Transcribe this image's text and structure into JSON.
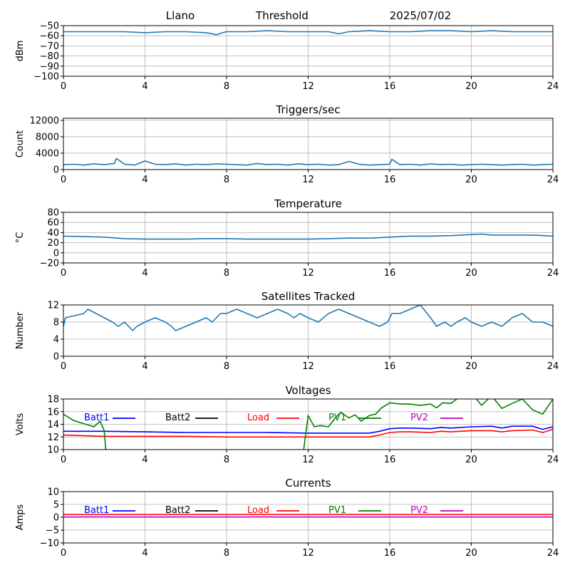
{
  "header": {
    "site": "Llano",
    "mode": "Threshold",
    "date": "2025/07/02"
  },
  "chart_data": [
    {
      "type": "line",
      "title": "",
      "ylabel": "dBm",
      "xlim": [
        0,
        24
      ],
      "ylim": [
        -100,
        -50
      ],
      "xticks": [
        0,
        4,
        8,
        12,
        16,
        20,
        24
      ],
      "yticks": [
        -100,
        -90,
        -80,
        -70,
        -60,
        -50
      ],
      "series": [
        {
          "color": "#1f77b4",
          "x": [
            0,
            1,
            2,
            3,
            4,
            5,
            6,
            7,
            7.3,
            7.5,
            7.8,
            8,
            9,
            10,
            11,
            12,
            13,
            13.5,
            14,
            15,
            16,
            17,
            18,
            19,
            20,
            21,
            22,
            23,
            24
          ],
          "y": [
            -56,
            -56,
            -56,
            -56,
            -57,
            -56,
            -56,
            -57,
            -58,
            -59,
            -57,
            -56,
            -56,
            -55,
            -56,
            -56,
            -56,
            -58,
            -56,
            -55,
            -56,
            -56,
            -55,
            -55,
            -56,
            -55,
            -56,
            -56,
            -56
          ]
        }
      ]
    },
    {
      "type": "line",
      "title": "Triggers/sec",
      "ylabel": "Count",
      "xlim": [
        0,
        24
      ],
      "ylim": [
        0,
        12500
      ],
      "xticks": [
        0,
        4,
        8,
        12,
        16,
        20,
        24
      ],
      "yticks": [
        0,
        4000,
        8000,
        12000
      ],
      "series": [
        {
          "color": "#1f77b4",
          "x": [
            0,
            0.5,
            1,
            1.5,
            2,
            2.5,
            2.6,
            3,
            3.5,
            4,
            4.5,
            5,
            5.5,
            6,
            6.5,
            7,
            7.5,
            8,
            8.5,
            9,
            9.5,
            10,
            10.5,
            11,
            11.5,
            12,
            12.5,
            13,
            13.5,
            14,
            14.5,
            15,
            15.5,
            16,
            16.1,
            16.5,
            17,
            17.5,
            18,
            18.5,
            19,
            19.5,
            20,
            20.5,
            21,
            21.5,
            22,
            22.5,
            23,
            23.5,
            24
          ],
          "y": [
            1200,
            1300,
            1100,
            1400,
            1200,
            1500,
            2700,
            1300,
            1100,
            2100,
            1300,
            1200,
            1400,
            1100,
            1300,
            1200,
            1400,
            1300,
            1200,
            1100,
            1500,
            1200,
            1300,
            1100,
            1400,
            1200,
            1300,
            1100,
            1200,
            2000,
            1300,
            1100,
            1200,
            1300,
            2500,
            1200,
            1300,
            1100,
            1400,
            1200,
            1300,
            1100,
            1200,
            1300,
            1200,
            1100,
            1200,
            1300,
            1100,
            1200,
            1300
          ]
        }
      ]
    },
    {
      "type": "line",
      "title": "Temperature",
      "ylabel": "°C",
      "xlim": [
        0,
        24
      ],
      "ylim": [
        -20,
        80
      ],
      "xticks": [
        0,
        4,
        8,
        12,
        16,
        20,
        24
      ],
      "yticks": [
        -20,
        0,
        20,
        40,
        60,
        80
      ],
      "series": [
        {
          "color": "#1f77b4",
          "x": [
            0,
            1,
            2,
            3,
            4,
            5,
            6,
            7,
            8,
            9,
            10,
            11,
            12,
            13,
            14,
            15,
            16,
            17,
            18,
            19,
            20,
            20.5,
            21,
            22,
            23,
            24
          ],
          "y": [
            33,
            32,
            31,
            28,
            27,
            27,
            27,
            28,
            28,
            27,
            27,
            27,
            27,
            28,
            29,
            29,
            31,
            33,
            33,
            34,
            36,
            37,
            35,
            35,
            35,
            33
          ]
        }
      ]
    },
    {
      "type": "line",
      "title": "Satellites Tracked",
      "ylabel": "Number",
      "xlim": [
        0,
        24
      ],
      "ylim": [
        0,
        12
      ],
      "xticks": [
        0,
        4,
        8,
        12,
        16,
        20,
        24
      ],
      "yticks": [
        0,
        4,
        8,
        12
      ],
      "series": [
        {
          "color": "#1f77b4",
          "x": [
            0,
            0.1,
            1,
            1.2,
            1.6,
            2,
            2.4,
            2.7,
            3,
            3.2,
            3.4,
            3.6,
            4,
            4.5,
            5,
            5.3,
            5.5,
            6,
            6.5,
            7,
            7.3,
            7.7,
            8,
            8.5,
            9,
            9.5,
            10,
            10.5,
            11,
            11.3,
            11.6,
            12,
            12.5,
            13,
            13.5,
            14,
            14.5,
            15,
            15.5,
            15.9,
            16.1,
            16.5,
            17,
            17.5,
            18,
            18.3,
            18.7,
            19,
            19.3,
            19.7,
            20,
            20.5,
            21,
            21.5,
            22,
            22.5,
            23,
            23.5,
            24
          ],
          "y": [
            7,
            9,
            10,
            11,
            10,
            9,
            8,
            7,
            8,
            7,
            6,
            7,
            8,
            9,
            8,
            7,
            6,
            7,
            8,
            9,
            8,
            10,
            10,
            11,
            10,
            9,
            10,
            11,
            10,
            9,
            10,
            9,
            8,
            10,
            11,
            10,
            9,
            8,
            7,
            8,
            10,
            10,
            11,
            12,
            9,
            7,
            8,
            7,
            8,
            9,
            8,
            7,
            8,
            7,
            9,
            10,
            8,
            8,
            7
          ]
        }
      ]
    },
    {
      "type": "line",
      "title": "Voltages",
      "ylabel": "Volts",
      "xlim": [
        0,
        24
      ],
      "ylim": [
        10,
        18
      ],
      "xticks": [
        0,
        4,
        8,
        12,
        16,
        20,
        24
      ],
      "yticks": [
        10,
        12,
        14,
        16,
        18
      ],
      "legend": [
        "Batt1",
        "Batt2",
        "Load",
        "PV1",
        "PV2"
      ],
      "series": [
        {
          "name": "Batt1",
          "color": "#0000ff",
          "x": [
            0,
            2,
            4,
            6,
            8,
            10,
            12,
            14,
            15,
            15.5,
            16,
            16.5,
            17,
            18,
            18.5,
            19,
            20,
            21,
            21.5,
            22,
            23,
            23.5,
            24
          ],
          "y": [
            12.9,
            12.9,
            12.8,
            12.7,
            12.7,
            12.7,
            12.6,
            12.6,
            12.6,
            12.9,
            13.3,
            13.4,
            13.4,
            13.3,
            13.5,
            13.4,
            13.6,
            13.7,
            13.4,
            13.7,
            13.7,
            13.2,
            13.6
          ]
        },
        {
          "name": "Load",
          "color": "#ff0000",
          "x": [
            0,
            2,
            4,
            6,
            8,
            10,
            12,
            14,
            15,
            15.5,
            16,
            16.5,
            17,
            18,
            18.5,
            19,
            20,
            21,
            21.5,
            22,
            23,
            23.5,
            24
          ],
          "y": [
            12.3,
            12.1,
            12.1,
            12.1,
            12.0,
            12.0,
            12.0,
            12.0,
            12.0,
            12.3,
            12.7,
            12.8,
            12.8,
            12.7,
            12.9,
            12.8,
            13.0,
            13.0,
            12.8,
            13.0,
            13.1,
            12.7,
            13.2
          ]
        },
        {
          "name": "PV1",
          "color": "#008000",
          "break_after": 7,
          "x": [
            0,
            0.5,
            1,
            1.5,
            1.8,
            2,
            2.1,
            2.3,
            11.7,
            12,
            12.3,
            12.6,
            13,
            13.3,
            13.6,
            14,
            14.3,
            14.6,
            15,
            15.3,
            15.6,
            16,
            16.5,
            17,
            17.5,
            18,
            18.3,
            18.6,
            19,
            19.5,
            20,
            20.5,
            21,
            21.5,
            22,
            22.5,
            23,
            23.5,
            24
          ],
          "y": [
            15.6,
            14.6,
            14.1,
            13.6,
            14.5,
            13.0,
            9.0,
            8.0,
            8.0,
            15.4,
            13.6,
            13.8,
            13.6,
            14.9,
            15.9,
            15.0,
            15.5,
            14.5,
            15.4,
            15.6,
            16.6,
            17.4,
            17.2,
            17.2,
            17.0,
            17.2,
            16.6,
            17.4,
            17.3,
            18.5,
            19.0,
            17.0,
            18.5,
            16.5,
            17.3,
            18.0,
            16.3,
            15.6,
            18.0
          ]
        }
      ]
    },
    {
      "type": "line",
      "title": "Currents",
      "ylabel": "Amps",
      "xlim": [
        0,
        24
      ],
      "ylim": [
        -10,
        10
      ],
      "xticks": [
        0,
        4,
        8,
        12,
        16,
        20,
        24
      ],
      "yticks": [
        -10,
        -5,
        0,
        5,
        10
      ],
      "legend": [
        "Batt1",
        "Batt2",
        "Load",
        "PV1",
        "PV2"
      ],
      "series": [
        {
          "name": "Load",
          "color": "#ff0000",
          "x": [
            0,
            24
          ],
          "y": [
            1.1,
            1.1
          ]
        },
        {
          "name": "PV2",
          "color": "#bf00bf",
          "x": [
            0,
            24
          ],
          "y": [
            0.1,
            0.1
          ]
        }
      ]
    }
  ],
  "legend_colors": {
    "Batt1": "#0000ff",
    "Batt2": "#000000",
    "Load": "#ff0000",
    "PV1": "#008000",
    "PV2": "#bf00bf"
  }
}
